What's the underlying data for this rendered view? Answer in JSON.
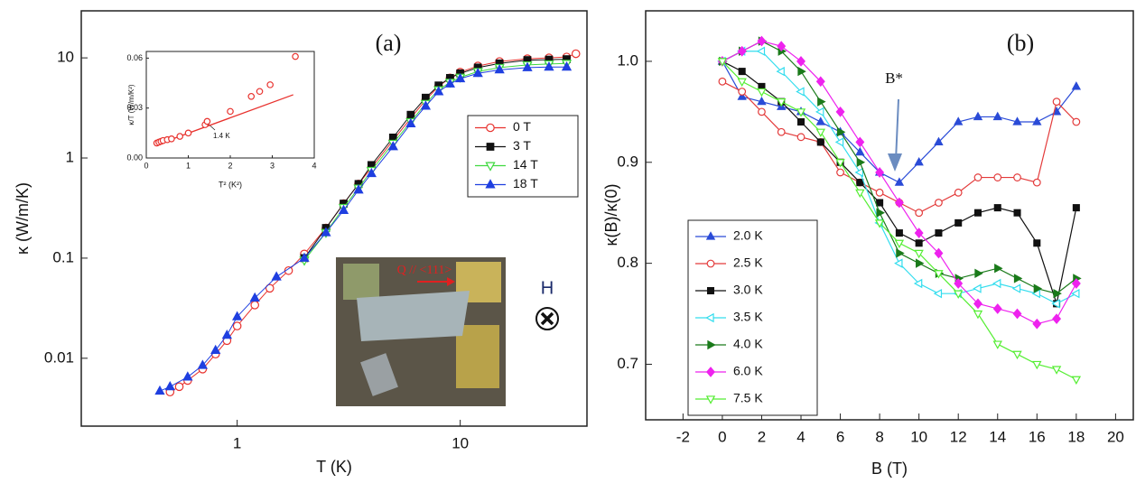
{
  "chart_data": [
    {
      "type": "scatter",
      "panel_label": "(a)",
      "x_label": "T (K)",
      "y_label": "κ (W/m/K)",
      "xscale": "log",
      "yscale": "log",
      "xlim": [
        0.2,
        37
      ],
      "ylim": [
        0.0021,
        29.5
      ],
      "xticks": [
        1,
        10
      ],
      "yticks": [
        0.01,
        0.1,
        1,
        10
      ],
      "legend": "upper right",
      "annotations": [
        "Q // <111>",
        "H"
      ],
      "series": [
        {
          "name": "0 T",
          "color": "#e8322e",
          "marker": "circle",
          "filled": false,
          "x": [
            0.5,
            0.55,
            0.6,
            0.7,
            0.8,
            0.9,
            1,
            1.2,
            1.4,
            1.7,
            2,
            2.5,
            3,
            3.5,
            4,
            5,
            6,
            7,
            8,
            9,
            10,
            12,
            15,
            20,
            25,
            30,
            33
          ],
          "values": [
            0.0046,
            0.0052,
            0.006,
            0.0078,
            0.011,
            0.015,
            0.021,
            0.034,
            0.05,
            0.075,
            0.11,
            0.2,
            0.35,
            0.55,
            0.8,
            1.5,
            2.5,
            3.8,
            5.2,
            6.3,
            7.2,
            8.3,
            9.2,
            9.8,
            10,
            10.2,
            11
          ]
        },
        {
          "name": "3 T",
          "color": "#111111",
          "marker": "square",
          "filled": true,
          "x": [
            2,
            2.5,
            3,
            3.5,
            4,
            5,
            6,
            7,
            8,
            9,
            10,
            12,
            15,
            20,
            25,
            30
          ],
          "values": [
            0.1,
            0.2,
            0.35,
            0.55,
            0.85,
            1.6,
            2.7,
            4,
            5.3,
            6.3,
            7,
            8,
            8.8,
            9.5,
            9.6,
            9.7
          ]
        },
        {
          "name": "14 T",
          "color": "#3fd93f",
          "marker": "triangle-down",
          "filled": false,
          "x": [
            2,
            2.5,
            3,
            3.5,
            4,
            5,
            6,
            7,
            8,
            9,
            10,
            12,
            15,
            20,
            25,
            30
          ],
          "values": [
            0.095,
            0.18,
            0.32,
            0.5,
            0.75,
            1.4,
            2.3,
            3.5,
            4.8,
            5.7,
            6.4,
            7.3,
            8,
            8.5,
            8.7,
            8.8
          ]
        },
        {
          "name": "18 T",
          "color": "#1f3fe0",
          "marker": "triangle-up",
          "filled": true,
          "x": [
            0.45,
            0.5,
            0.6,
            0.7,
            0.8,
            0.9,
            1,
            1.2,
            1.5,
            2,
            2.5,
            3,
            3.5,
            4,
            5,
            6,
            7,
            8,
            9,
            10,
            12,
            15,
            20,
            25,
            30
          ],
          "values": [
            0.0047,
            0.0052,
            0.0065,
            0.0085,
            0.012,
            0.017,
            0.026,
            0.04,
            0.065,
            0.1,
            0.18,
            0.3,
            0.48,
            0.7,
            1.3,
            2.2,
            3.3,
            4.6,
            5.5,
            6.2,
            7,
            7.6,
            8,
            8.1,
            8.1
          ]
        }
      ]
    },
    {
      "type": "scatter",
      "x_label": "T² (K²)",
      "y_label": "κ/T (W/m/K²)",
      "xlim": [
        0,
        4
      ],
      "ylim": [
        0,
        0.064
      ],
      "xticks": [
        0,
        1,
        2,
        3,
        4
      ],
      "yticks": [
        {
          "value": 0,
          "label": "0.00"
        },
        {
          "value": 0.03,
          "label": "0.03"
        },
        {
          "value": 0.06,
          "label": "0.06"
        }
      ],
      "annotation": "1.4 K",
      "fit": {
        "color": "#e8322e",
        "x": [
          0.2,
          3.5
        ],
        "values": [
          0.0075,
          0.038
        ]
      },
      "series": [
        {
          "color": "#e8322e",
          "marker": "circle",
          "filled": false,
          "x": [
            0.25,
            0.3,
            0.35,
            0.4,
            0.5,
            0.6,
            0.8,
            1.0,
            1.4,
            1.45,
            2.0,
            2.5,
            2.7,
            2.95,
            3.55
          ],
          "values": [
            0.009,
            0.0095,
            0.01,
            0.0105,
            0.011,
            0.0115,
            0.013,
            0.015,
            0.02,
            0.022,
            0.028,
            0.037,
            0.04,
            0.044,
            0.061
          ]
        }
      ]
    },
    {
      "type": "scatter",
      "panel_label": "(b)",
      "x_label": "B (T)",
      "y_label": "κ(B)/κ(0)",
      "xlim": [
        -3.9,
        20.9
      ],
      "ylim": [
        0.645,
        1.05
      ],
      "xticks": [
        -2,
        0,
        2,
        4,
        6,
        8,
        10,
        12,
        14,
        16,
        18,
        20
      ],
      "yticks": [
        0.7,
        0.8,
        0.9,
        {
          "value": 1,
          "label": "1.0"
        }
      ],
      "legend": "lower left",
      "annotation": "B*",
      "x": [
        0,
        1,
        2,
        3,
        4,
        5,
        6,
        7,
        8,
        9,
        10,
        11,
        12,
        13,
        14,
        15,
        16,
        17,
        18
      ],
      "series": [
        {
          "name": "2.0 K",
          "color": "#2a4bd7",
          "marker": "triangle-up",
          "filled": true,
          "values": [
            1.0,
            0.965,
            0.96,
            0.955,
            0.95,
            0.94,
            0.93,
            0.91,
            0.89,
            0.88,
            0.9,
            0.92,
            0.94,
            0.945,
            0.945,
            0.94,
            0.94,
            0.95,
            0.975
          ]
        },
        {
          "name": "2.5 K",
          "color": "#e33b3b",
          "marker": "circle",
          "filled": false,
          "values": [
            0.98,
            0.97,
            0.95,
            0.93,
            0.925,
            0.92,
            0.89,
            0.88,
            0.87,
            0.86,
            0.85,
            0.86,
            0.87,
            0.885,
            0.885,
            0.885,
            0.88,
            0.96,
            0.94
          ]
        },
        {
          "name": "3.0 K",
          "color": "#111111",
          "marker": "square",
          "filled": true,
          "values": [
            1.0,
            0.99,
            0.975,
            0.96,
            0.94,
            0.92,
            0.9,
            0.88,
            0.86,
            0.83,
            0.82,
            0.83,
            0.84,
            0.85,
            0.855,
            0.85,
            0.82,
            0.76,
            0.855
          ]
        },
        {
          "name": "3.5 K",
          "color": "#33ddee",
          "marker": "triangle-left",
          "filled": false,
          "values": [
            1.0,
            1.01,
            1.01,
            0.99,
            0.97,
            0.95,
            0.92,
            0.89,
            0.84,
            0.8,
            0.78,
            0.77,
            0.77,
            0.775,
            0.78,
            0.775,
            0.77,
            0.76,
            0.77
          ]
        },
        {
          "name": "4.0 K",
          "color": "#1a7a1a",
          "marker": "triangle-right",
          "filled": true,
          "values": [
            1.0,
            1.01,
            1.02,
            1.01,
            0.99,
            0.96,
            0.93,
            0.9,
            0.85,
            0.81,
            0.8,
            0.79,
            0.785,
            0.79,
            0.795,
            0.785,
            0.775,
            0.77,
            0.785
          ]
        },
        {
          "name": "6.0 K",
          "color": "#ee22ee",
          "marker": "diamond",
          "filled": true,
          "values": [
            1.0,
            1.01,
            1.02,
            1.015,
            1.0,
            0.98,
            0.95,
            0.92,
            0.89,
            0.86,
            0.83,
            0.81,
            0.78,
            0.76,
            0.755,
            0.75,
            0.74,
            0.745,
            0.78
          ]
        },
        {
          "name": "7.5 K",
          "color": "#55ee33",
          "marker": "triangle-down",
          "filled": false,
          "values": [
            1.0,
            0.98,
            0.97,
            0.96,
            0.95,
            0.93,
            0.9,
            0.87,
            0.84,
            0.82,
            0.81,
            0.79,
            0.77,
            0.75,
            0.72,
            0.71,
            0.7,
            0.695,
            0.685
          ]
        }
      ]
    }
  ]
}
